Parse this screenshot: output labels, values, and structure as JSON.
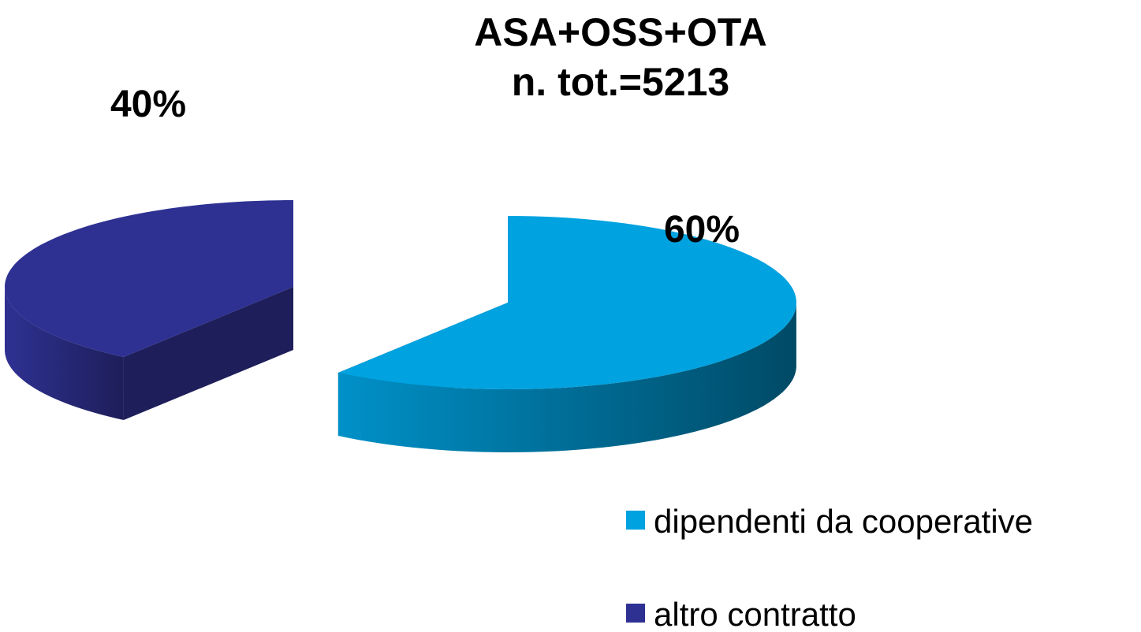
{
  "chart_data": {
    "type": "pie",
    "style": "3d-exploded",
    "title_lines": [
      "ASA+OSS+OTA",
      "n. tot.=5213"
    ],
    "slices": [
      {
        "name": "dipendenti da cooperative",
        "value": 60,
        "label": "60%",
        "color": "#00A2E0",
        "side_color_dark": "#004A66",
        "side_color_light": "#0091C8"
      },
      {
        "name": "altro contratto",
        "value": 40,
        "label": "40%",
        "color": "#2E3192",
        "side_color_dark": "#1E1E5A",
        "side_color_light": "#2E3192"
      }
    ],
    "legend": {
      "position": "bottom-right",
      "entries": [
        "dipendenti da cooperative",
        "altro contratto"
      ]
    }
  }
}
